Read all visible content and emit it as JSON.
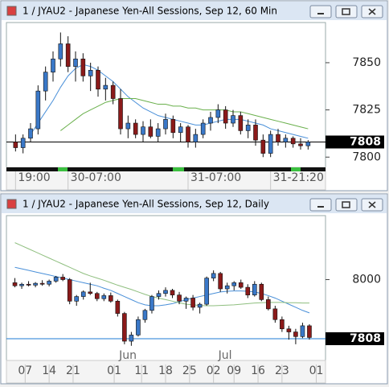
{
  "chart_data": [
    {
      "type": "candlestick",
      "title": "1 / JYAU2 - Japanese Yen-All Sessions, Sep 12, 60 Min",
      "ylim": [
        7795,
        7870
      ],
      "yticks": [
        7800,
        7825,
        7850
      ],
      "xlim": [
        -1,
        41
      ],
      "xticks": [
        {
          "value": 0,
          "label": "19:00"
        },
        {
          "value": 7,
          "label": "30-07:00"
        },
        {
          "value": 23,
          "label": "31-07:00"
        },
        {
          "value": 34,
          "label": "31-21:20"
        }
      ],
      "up_color": "#3a78c8",
      "down_color": "#8b1a1a",
      "candles": {
        "open": [
          7808,
          7805,
          7810,
          7815,
          7835,
          7845,
          7852,
          7860,
          7848,
          7852,
          7843,
          7846,
          7836,
          7838,
          7831,
          7815,
          7818,
          7812,
          7816,
          7811,
          7815,
          7820,
          7813,
          7816,
          7808,
          7812,
          7818,
          7821,
          7825,
          7818,
          7822,
          7814,
          7817,
          7809,
          7802,
          7812,
          7808,
          7810,
          7807,
          7806
        ],
        "high": [
          7812,
          7812,
          7818,
          7838,
          7848,
          7856,
          7866,
          7864,
          7856,
          7855,
          7850,
          7848,
          7842,
          7840,
          7836,
          7822,
          7820,
          7819,
          7820,
          7818,
          7823,
          7822,
          7818,
          7817,
          7815,
          7820,
          7824,
          7828,
          7827,
          7825,
          7824,
          7820,
          7820,
          7812,
          7814,
          7815,
          7812,
          7811,
          7810,
          7809
        ],
        "low": [
          7803,
          7802,
          7808,
          7812,
          7830,
          7840,
          7848,
          7845,
          7840,
          7840,
          7835,
          7832,
          7830,
          7828,
          7812,
          7810,
          7810,
          7808,
          7810,
          7808,
          7812,
          7810,
          7808,
          7805,
          7805,
          7810,
          7814,
          7818,
          7815,
          7816,
          7812,
          7810,
          7806,
          7800,
          7800,
          7806,
          7805,
          7805,
          7804,
          7804
        ],
        "close": [
          7805,
          7810,
          7815,
          7835,
          7845,
          7852,
          7860,
          7848,
          7852,
          7843,
          7846,
          7836,
          7838,
          7831,
          7815,
          7818,
          7812,
          7816,
          7811,
          7815,
          7820,
          7813,
          7816,
          7808,
          7812,
          7818,
          7821,
          7825,
          7818,
          7822,
          7814,
          7817,
          7809,
          7802,
          7812,
          7808,
          7810,
          7807,
          7806,
          7808
        ]
      },
      "lines": [
        {
          "color": "#4a90d9",
          "values": [
            null,
            null,
            7812,
            7818,
            7824,
            7830,
            7837,
            7843,
            7847,
            7849,
            7848,
            7846,
            7843,
            7840,
            7836,
            7832,
            7829,
            7826,
            7824,
            7822,
            7821,
            7820,
            7819,
            7818,
            7817,
            7817,
            7818,
            7819,
            7820,
            7820,
            7820,
            7819,
            7818,
            7817,
            7815,
            7814,
            7813,
            7812,
            7811,
            7810
          ]
        },
        {
          "color": "#6ab04c",
          "values": [
            null,
            null,
            null,
            null,
            null,
            null,
            7814,
            7817,
            7820,
            7823,
            7825,
            7827,
            7829,
            7830,
            7831,
            7831,
            7831,
            7830,
            7829,
            7828,
            7828,
            7827,
            7827,
            7826,
            7826,
            7825,
            7825,
            7825,
            7825,
            7824,
            7824,
            7823,
            7822,
            7821,
            7820,
            7819,
            7818,
            7817,
            7816,
            7815
          ]
        }
      ],
      "last": 7808,
      "last_line_color": "#000000"
    },
    {
      "type": "candlestick",
      "title": "1 / JYAU2 - Japanese Yen-All Sessions, Sep 12, Daily",
      "ylim": [
        7740,
        8200
      ],
      "yticks": [
        8000
      ],
      "xlim": [
        -1,
        45
      ],
      "xticks": [
        {
          "value": 1.5,
          "label": "07"
        },
        {
          "value": 5,
          "label": "14"
        },
        {
          "value": 8.5,
          "label": "21"
        },
        {
          "value": 14.5,
          "label": "01"
        },
        {
          "value": 18.5,
          "label": "11"
        },
        {
          "value": 22,
          "label": "18"
        },
        {
          "value": 25.5,
          "label": "25"
        },
        {
          "value": 29,
          "label": "02"
        },
        {
          "value": 32,
          "label": "09"
        },
        {
          "value": 35.5,
          "label": "16"
        },
        {
          "value": 39,
          "label": "23"
        },
        {
          "value": 44,
          "label": "01"
        }
      ],
      "month_ticks": [
        {
          "value": 14.5,
          "label": "Jun"
        },
        {
          "value": 29,
          "label": "Jul"
        }
      ],
      "up_color": "#3a78c8",
      "down_color": "#8b1a1a",
      "candles": {
        "open": [
          7990,
          7980,
          7985,
          7982,
          7988,
          7985,
          7995,
          8008,
          8000,
          7930,
          7945,
          7960,
          7955,
          7938,
          7948,
          7930,
          7890,
          7800,
          7820,
          7870,
          7900,
          7945,
          7955,
          7965,
          7950,
          7930,
          7940,
          7910,
          7920,
          8005,
          8020,
          7970,
          7980,
          7990,
          7975,
          7950,
          7985,
          7935,
          7905,
          7870,
          7840,
          7830,
          7815,
          7850
        ],
        "high": [
          8005,
          7990,
          7995,
          7992,
          7998,
          8000,
          8012,
          8018,
          8005,
          7950,
          7965,
          7990,
          7960,
          7955,
          7958,
          7935,
          7895,
          7830,
          7880,
          7905,
          7950,
          7965,
          7975,
          7970,
          7960,
          7945,
          7950,
          7925,
          8010,
          8030,
          8025,
          7990,
          7995,
          8000,
          7985,
          7995,
          7990,
          7945,
          7915,
          7880,
          7850,
          7840,
          7860,
          7855
        ],
        "low": [
          7975,
          7970,
          7978,
          7975,
          7980,
          7978,
          7990,
          7995,
          7920,
          7915,
          7935,
          7950,
          7930,
          7930,
          7925,
          7880,
          7790,
          7785,
          7815,
          7860,
          7890,
          7935,
          7945,
          7940,
          7920,
          7905,
          7900,
          7890,
          7915,
          7995,
          7960,
          7955,
          7965,
          7970,
          7940,
          7945,
          7930,
          7900,
          7860,
          7830,
          7805,
          7790,
          7810,
          7805
        ],
        "close": [
          7980,
          7985,
          7982,
          7988,
          7985,
          7995,
          8008,
          8000,
          7930,
          7945,
          7960,
          7955,
          7938,
          7948,
          7930,
          7890,
          7800,
          7820,
          7870,
          7900,
          7945,
          7955,
          7965,
          7950,
          7930,
          7940,
          7910,
          7920,
          8005,
          8020,
          7970,
          7980,
          7990,
          7975,
          7950,
          7985,
          7935,
          7905,
          7870,
          7840,
          7830,
          7815,
          7850,
          7812
        ]
      },
      "lines": [
        {
          "color": "#4a90d9",
          "values": [
            8040,
            8035,
            8030,
            8025,
            8020,
            8015,
            8010,
            8005,
            8000,
            7995,
            7990,
            7985,
            7980,
            7972,
            7965,
            7955,
            7945,
            7935,
            7925,
            7918,
            7915,
            7915,
            7918,
            7922,
            7928,
            7935,
            7940,
            7945,
            7950,
            7955,
            7960,
            7962,
            7963,
            7963,
            7962,
            7960,
            7955,
            7948,
            7940,
            7930,
            7920,
            7910,
            7900,
            7892
          ]
        },
        {
          "color": "#8fbf7f",
          "values": [
            8120,
            8110,
            8100,
            8090,
            8080,
            8070,
            8060,
            8050,
            8040,
            8030,
            8020,
            8012,
            8005,
            7998,
            7990,
            7982,
            7975,
            7968,
            7960,
            7952,
            7945,
            7940,
            7935,
            7930,
            7925,
            7920,
            7918,
            7916,
            7915,
            7915,
            7916,
            7917,
            7918,
            7920,
            7922,
            7924,
            7925,
            7926,
            7926,
            7926,
            7925,
            7925,
            7924,
            7924
          ]
        }
      ],
      "last": 7808,
      "last_line_color": "#1e7bd6"
    }
  ]
}
